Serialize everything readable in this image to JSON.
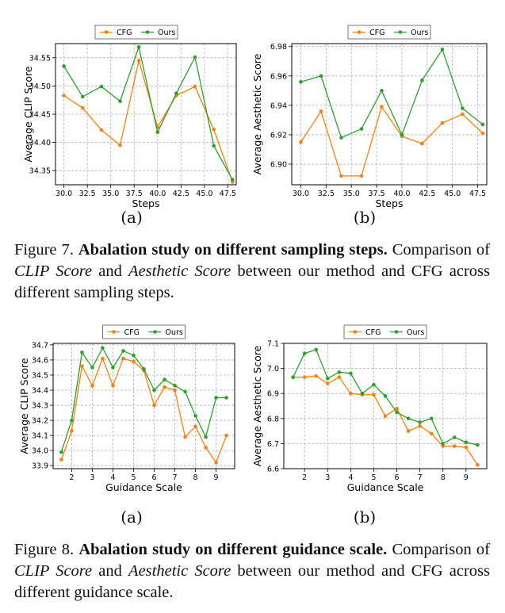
{
  "colors": {
    "cfg": "#ff7f0e",
    "ours": "#2ca02c",
    "grid": "#b0b0b0"
  },
  "figure7": {
    "subcaptions": [
      "(a)",
      "(b)"
    ],
    "caption": {
      "label": "Figure 7.",
      "bold": "Abalation study on different sampling steps.",
      "t1": "Comparison of",
      "i1": "CLIP Score",
      "t2": "and",
      "i2": "Aesthetic Score",
      "t3": "between our method and CFG across different sampling steps."
    }
  },
  "figure8": {
    "subcaptions": [
      "(a)",
      "(b)"
    ],
    "caption": {
      "label": "Figure 8.",
      "bold": "Abalation study on different guidance scale.",
      "t1": "Comparison of",
      "i1": "CLIP Score",
      "t2": "and",
      "i2": "Aesthetic Score",
      "t3": "between our method and CFG across different guidance scale."
    }
  },
  "chart_data": [
    {
      "type": "line",
      "xlabel": "Steps",
      "ylabel": "Average CLIP Score",
      "xlim": [
        29.1,
        48.4
      ],
      "ylim": [
        34.325,
        34.575
      ],
      "xticks": [
        "30.0",
        "32.5",
        "35.0",
        "37.5",
        "40.0",
        "42.5",
        "45.0",
        "47.5"
      ],
      "yticks": [
        "34.35",
        "34.40",
        "34.45",
        "34.50",
        "34.55"
      ],
      "grid": true,
      "legend_position": "top-center",
      "x": [
        30,
        32,
        34,
        36,
        38,
        40,
        42,
        44,
        46,
        48
      ],
      "series": [
        {
          "name": "CFG",
          "values": [
            34.483,
            34.461,
            34.422,
            34.395,
            34.545,
            34.427,
            34.483,
            34.499,
            34.423,
            34.33
          ]
        },
        {
          "name": "Ours",
          "values": [
            34.535,
            34.481,
            34.499,
            34.473,
            34.569,
            34.418,
            34.487,
            34.551,
            34.394,
            34.334
          ]
        }
      ]
    },
    {
      "type": "line",
      "xlabel": "Steps",
      "ylabel": "Average Aesthetic Score",
      "xlim": [
        29.1,
        48.4
      ],
      "ylim": [
        6.886,
        6.982
      ],
      "xticks": [
        "30.0",
        "32.5",
        "35.0",
        "37.5",
        "40.0",
        "42.5",
        "45.0",
        "47.5"
      ],
      "yticks": [
        "6.90",
        "6.92",
        "6.94",
        "6.96",
        "6.98"
      ],
      "grid": true,
      "legend_position": "top-center",
      "x": [
        30,
        32,
        34,
        36,
        38,
        40,
        42,
        44,
        46,
        48
      ],
      "series": [
        {
          "name": "CFG",
          "values": [
            6.915,
            6.936,
            6.892,
            6.892,
            6.939,
            6.919,
            6.914,
            6.928,
            6.934,
            6.921
          ]
        },
        {
          "name": "Ours",
          "values": [
            6.956,
            6.96,
            6.918,
            6.924,
            6.95,
            6.92,
            6.957,
            6.978,
            6.938,
            6.927
          ]
        }
      ]
    },
    {
      "type": "line",
      "xlabel": "Guidance Scale",
      "ylabel": "Average CLIP Score",
      "xlim": [
        1.1,
        9.9
      ],
      "ylim": [
        33.88,
        34.71
      ],
      "xticks": [
        "2",
        "3",
        "4",
        "5",
        "6",
        "7",
        "8",
        "9"
      ],
      "yticks": [
        "33.9",
        "34.0",
        "34.1",
        "34.2",
        "34.3",
        "34.4",
        "34.5",
        "34.6",
        "34.7"
      ],
      "grid": true,
      "legend_position": "top-center",
      "x": [
        1.5,
        2.0,
        2.5,
        3.0,
        3.5,
        4.0,
        4.5,
        5.0,
        5.5,
        6.0,
        6.5,
        7.0,
        7.5,
        8.0,
        8.5,
        9.0,
        9.5
      ],
      "series": [
        {
          "name": "CFG",
          "values": [
            33.94,
            34.13,
            34.56,
            34.43,
            34.61,
            34.43,
            34.61,
            34.59,
            34.53,
            34.3,
            34.42,
            34.4,
            34.09,
            34.16,
            34.02,
            33.92,
            34.1
          ]
        },
        {
          "name": "Ours",
          "values": [
            33.99,
            34.2,
            34.65,
            34.55,
            34.68,
            34.55,
            34.66,
            34.63,
            34.54,
            34.4,
            34.47,
            34.43,
            34.39,
            34.23,
            34.09,
            34.35,
            34.35
          ]
        }
      ]
    },
    {
      "type": "line",
      "xlabel": "Guidance Scale",
      "ylabel": "Average Aesthetic Score",
      "xlim": [
        1.1,
        9.9
      ],
      "ylim": [
        6.6,
        7.1
      ],
      "xticks": [
        "2",
        "3",
        "4",
        "5",
        "6",
        "7",
        "8",
        "9"
      ],
      "yticks": [
        "6.6",
        "6.7",
        "6.8",
        "6.9",
        "7.0",
        "7.1"
      ],
      "grid": true,
      "legend_position": "top-center",
      "x": [
        1.5,
        2.0,
        2.5,
        3.0,
        3.5,
        4.0,
        4.5,
        5.0,
        5.5,
        6.0,
        6.5,
        7.0,
        7.5,
        8.0,
        8.5,
        9.0,
        9.5
      ],
      "series": [
        {
          "name": "CFG",
          "values": [
            6.965,
            6.965,
            6.97,
            6.94,
            6.965,
            6.9,
            6.895,
            6.895,
            6.81,
            6.84,
            6.75,
            6.77,
            6.74,
            6.69,
            6.69,
            6.685,
            6.615
          ]
        },
        {
          "name": "Ours",
          "values": [
            6.965,
            7.06,
            7.075,
            6.96,
            6.985,
            6.98,
            6.9,
            6.935,
            6.89,
            6.825,
            6.8,
            6.785,
            6.8,
            6.7,
            6.725,
            6.705,
            6.695
          ]
        }
      ]
    }
  ]
}
